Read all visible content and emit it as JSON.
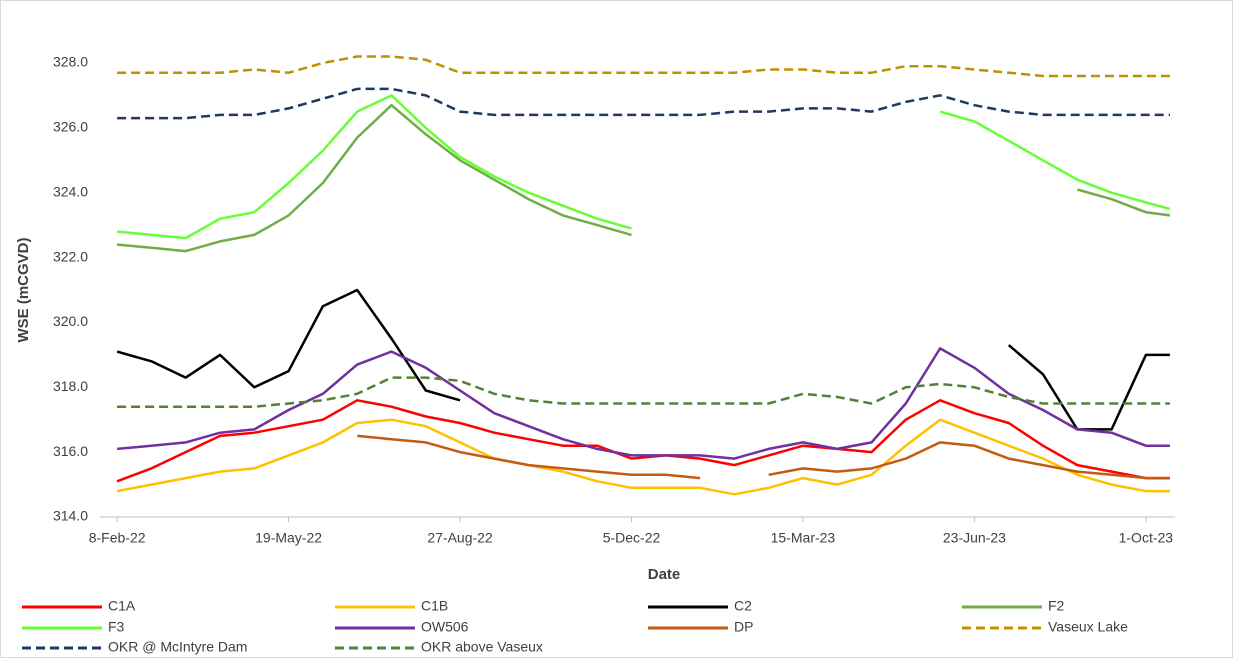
{
  "chart_data": {
    "type": "line",
    "xlabel": "Date",
    "ylabel": "WSE (mCGVD)",
    "x": [
      "2022-02-08",
      "2022-02-28",
      "2022-03-20",
      "2022-04-09",
      "2022-04-29",
      "2022-05-19",
      "2022-06-08",
      "2022-06-28",
      "2022-07-18",
      "2022-08-07",
      "2022-08-27",
      "2022-09-16",
      "2022-10-06",
      "2022-10-26",
      "2022-11-15",
      "2022-12-05",
      "2022-12-25",
      "2023-01-14",
      "2023-02-03",
      "2023-02-23",
      "2023-03-15",
      "2023-04-04",
      "2023-04-24",
      "2023-05-14",
      "2023-06-03",
      "2023-06-23",
      "2023-07-13",
      "2023-08-02",
      "2023-08-22",
      "2023-09-11",
      "2023-10-01",
      "2023-10-15"
    ],
    "xlim": [
      "2022-01-29",
      "2023-10-18"
    ],
    "xticks": [
      {
        "value": "2022-02-08",
        "label": "8-Feb-22"
      },
      {
        "value": "2022-05-19",
        "label": "19-May-22"
      },
      {
        "value": "2022-08-27",
        "label": "27-Aug-22"
      },
      {
        "value": "2022-12-05",
        "label": "5-Dec-22"
      },
      {
        "value": "2023-03-15",
        "label": "15-Mar-23"
      },
      {
        "value": "2023-06-23",
        "label": "23-Jun-23"
      },
      {
        "value": "2023-10-01",
        "label": "1-Oct-23"
      }
    ],
    "ylim": [
      314,
      328
    ],
    "yticks": [
      {
        "value": 314,
        "label": "314.0"
      },
      {
        "value": 316,
        "label": "316.0"
      },
      {
        "value": 318,
        "label": "318.0"
      },
      {
        "value": 320,
        "label": "320.0"
      },
      {
        "value": 322,
        "label": "322.0"
      },
      {
        "value": 324,
        "label": "324.0"
      },
      {
        "value": 326,
        "label": "326.0"
      },
      {
        "value": 328,
        "label": "328.0"
      }
    ],
    "series": [
      {
        "name": "C1A",
        "color": "#ff0000",
        "values": [
          315.1,
          315.5,
          316.0,
          316.5,
          316.6,
          316.8,
          317.0,
          317.6,
          317.4,
          317.1,
          316.9,
          316.6,
          316.4,
          316.2,
          316.2,
          315.8,
          315.9,
          315.8,
          315.6,
          315.9,
          316.2,
          316.1,
          316.0,
          317.0,
          317.6,
          317.2,
          316.9,
          316.2,
          315.6,
          315.4,
          315.2,
          315.2
        ]
      },
      {
        "name": "C1B",
        "color": "#ffc000",
        "values": [
          314.8,
          315.0,
          315.2,
          315.4,
          315.5,
          315.9,
          316.3,
          316.9,
          317.0,
          316.8,
          316.3,
          315.8,
          315.6,
          315.4,
          315.1,
          314.9,
          314.9,
          314.9,
          314.7,
          314.9,
          315.2,
          315.0,
          315.3,
          316.2,
          317.0,
          316.6,
          316.2,
          315.8,
          315.3,
          315.0,
          314.8,
          314.8
        ]
      },
      {
        "name": "C2",
        "color": "#000000",
        "values": [
          319.1,
          318.8,
          318.3,
          319.0,
          318.0,
          318.5,
          320.5,
          321.0,
          319.5,
          317.9,
          317.6,
          null,
          null,
          null,
          null,
          null,
          null,
          null,
          null,
          null,
          null,
          null,
          null,
          null,
          null,
          null,
          319.3,
          318.4,
          316.7,
          316.7,
          319.0,
          319.0
        ]
      },
      {
        "name": "F2",
        "color": "#70ad47",
        "values": [
          322.4,
          322.3,
          322.2,
          322.5,
          322.7,
          323.3,
          324.3,
          325.7,
          326.7,
          325.8,
          325.0,
          324.4,
          323.8,
          323.3,
          323.0,
          322.7,
          null,
          null,
          null,
          null,
          null,
          null,
          null,
          null,
          null,
          null,
          null,
          null,
          324.1,
          323.8,
          323.4,
          323.3
        ]
      },
      {
        "name": "F3",
        "color": "#66ff33",
        "values": [
          322.8,
          322.7,
          322.6,
          323.2,
          323.4,
          324.3,
          325.3,
          326.5,
          327.0,
          326.0,
          325.1,
          324.5,
          324.0,
          323.6,
          323.2,
          322.9,
          null,
          null,
          null,
          null,
          null,
          null,
          null,
          null,
          326.5,
          326.2,
          325.6,
          325.0,
          324.4,
          324.0,
          323.7,
          323.5
        ]
      },
      {
        "name": "OW506",
        "color": "#7030a0",
        "values": [
          316.1,
          316.2,
          316.3,
          316.6,
          316.7,
          317.3,
          317.8,
          318.7,
          319.1,
          318.6,
          317.9,
          317.2,
          316.8,
          316.4,
          316.1,
          315.9,
          315.9,
          315.9,
          315.8,
          316.1,
          316.3,
          316.1,
          316.3,
          317.5,
          319.2,
          318.6,
          317.8,
          317.3,
          316.7,
          316.6,
          316.2,
          316.2
        ]
      },
      {
        "name": "DP",
        "color": "#c55a11",
        "values": [
          null,
          null,
          null,
          null,
          null,
          null,
          null,
          316.5,
          316.4,
          316.3,
          316.0,
          315.8,
          315.6,
          315.5,
          315.4,
          315.3,
          315.3,
          315.2,
          null,
          315.3,
          315.5,
          315.4,
          315.5,
          315.8,
          316.3,
          316.2,
          315.8,
          315.6,
          315.4,
          315.3,
          315.2,
          315.2
        ]
      },
      {
        "name": "Vaseux Lake",
        "color": "#bf9000",
        "dashed": true,
        "values": [
          327.7,
          327.7,
          327.7,
          327.7,
          327.8,
          327.7,
          328.0,
          328.2,
          328.2,
          328.1,
          327.7,
          327.7,
          327.7,
          327.7,
          327.7,
          327.7,
          327.7,
          327.7,
          327.7,
          327.8,
          327.8,
          327.7,
          327.7,
          327.9,
          327.9,
          327.8,
          327.7,
          327.6,
          327.6,
          327.6,
          327.6,
          327.6
        ]
      },
      {
        "name": "OKR @ McIntyre Dam",
        "color": "#203864",
        "dashed": true,
        "values": [
          326.3,
          326.3,
          326.3,
          326.4,
          326.4,
          326.6,
          326.9,
          327.2,
          327.2,
          327.0,
          326.5,
          326.4,
          326.4,
          326.4,
          326.4,
          326.4,
          326.4,
          326.4,
          326.5,
          326.5,
          326.6,
          326.6,
          326.5,
          326.8,
          327.0,
          326.7,
          326.5,
          326.4,
          326.4,
          326.4,
          326.4,
          326.4
        ]
      },
      {
        "name": "OKR above Vaseux",
        "color": "#548235",
        "dashed": true,
        "values": [
          317.4,
          317.4,
          317.4,
          317.4,
          317.4,
          317.5,
          317.6,
          317.8,
          318.3,
          318.3,
          318.2,
          317.8,
          317.6,
          317.5,
          317.5,
          317.5,
          317.5,
          317.5,
          317.5,
          317.5,
          317.8,
          317.7,
          317.5,
          318.0,
          318.1,
          318.0,
          317.7,
          317.5,
          317.5,
          317.5,
          317.5,
          317.5
        ]
      }
    ]
  }
}
